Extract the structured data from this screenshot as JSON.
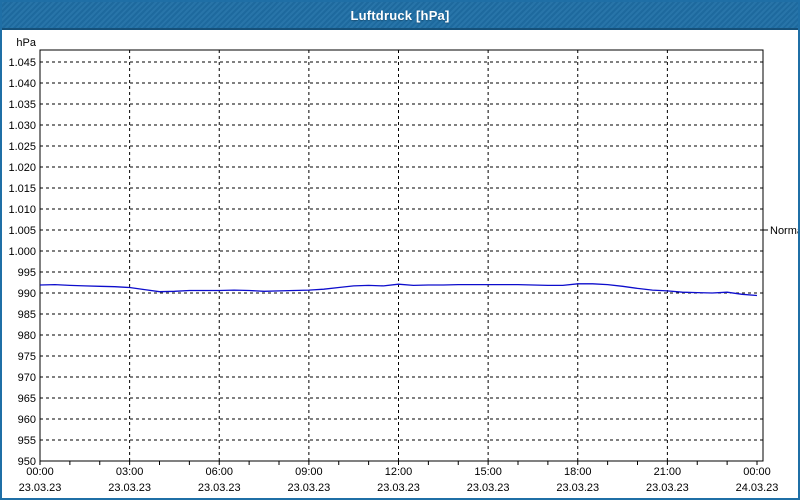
{
  "window": {
    "title": "Luftdruck [hPa]"
  },
  "colors": {
    "titlebar": "#1f6fa6",
    "titlebar_edge": "#155079",
    "window_border": "#1f6fa6",
    "plot_background": "#ffffff",
    "frame": "#000000",
    "grid": "#000000",
    "text": "#000000",
    "series_line": "#0d0dcc"
  },
  "chart_data": {
    "type": "line",
    "title": "Luftdruck [hPa]",
    "y_axis_unit": "hPa",
    "ylim": [
      950,
      1047.5
    ],
    "grid": "dashed",
    "legend_position": "none",
    "y_ticks": [
      {
        "value": 1045,
        "label": "1.045"
      },
      {
        "value": 1040,
        "label": "1.040"
      },
      {
        "value": 1035,
        "label": "1.035"
      },
      {
        "value": 1030,
        "label": "1.030"
      },
      {
        "value": 1025,
        "label": "1.025"
      },
      {
        "value": 1020,
        "label": "1.020"
      },
      {
        "value": 1015,
        "label": "1.015"
      },
      {
        "value": 1010,
        "label": "1.010"
      },
      {
        "value": 1005,
        "label": "1.005"
      },
      {
        "value": 1000,
        "label": "1.000"
      },
      {
        "value": 995,
        "label": "995"
      },
      {
        "value": 990,
        "label": "990"
      },
      {
        "value": 985,
        "label": "985"
      },
      {
        "value": 980,
        "label": "980"
      },
      {
        "value": 975,
        "label": "975"
      },
      {
        "value": 970,
        "label": "970"
      },
      {
        "value": 965,
        "label": "965"
      },
      {
        "value": 960,
        "label": "960"
      },
      {
        "value": 955,
        "label": "955"
      },
      {
        "value": 950,
        "label": "950"
      }
    ],
    "x_ticks_major": [
      {
        "hour": 0,
        "time": "00:00",
        "date": "23.03.23"
      },
      {
        "hour": 3,
        "time": "03:00",
        "date": "23.03.23"
      },
      {
        "hour": 6,
        "time": "06:00",
        "date": "23.03.23"
      },
      {
        "hour": 9,
        "time": "09:00",
        "date": "23.03.23"
      },
      {
        "hour": 12,
        "time": "12:00",
        "date": "23.03.23"
      },
      {
        "hour": 15,
        "time": "15:00",
        "date": "23.03.23"
      },
      {
        "hour": 18,
        "time": "18:00",
        "date": "23.03.23"
      },
      {
        "hour": 21,
        "time": "21:00",
        "date": "23.03.23"
      },
      {
        "hour": 24,
        "time": "00:00",
        "date": "24.03.23"
      }
    ],
    "x_minor_tick_every_hours": 1,
    "normal_marker": {
      "label": "Normal",
      "value": 1005
    },
    "series": [
      {
        "name": "Luftdruck",
        "color": "#0d0dcc",
        "x_hours": [
          0,
          0.5,
          1,
          1.5,
          2,
          2.5,
          3,
          3.5,
          4,
          4.5,
          5,
          5.5,
          6,
          6.5,
          7,
          7.5,
          8,
          8.5,
          9,
          9.5,
          10,
          10.5,
          11,
          11.5,
          12,
          12.5,
          13,
          13.5,
          14,
          14.5,
          15,
          15.5,
          16,
          16.5,
          17,
          17.5,
          18,
          18.5,
          19,
          19.5,
          20,
          20.5,
          21,
          21.5,
          22,
          22.5,
          23,
          23.5,
          24
        ],
        "values": [
          991.9,
          992.0,
          991.8,
          991.7,
          991.6,
          991.5,
          991.3,
          990.8,
          990.3,
          990.4,
          990.6,
          990.6,
          990.6,
          990.7,
          990.6,
          990.4,
          990.5,
          990.6,
          990.7,
          990.9,
          991.3,
          991.7,
          991.8,
          991.7,
          992.1,
          991.8,
          991.9,
          991.9,
          992.0,
          992.0,
          992.0,
          992.0,
          992.0,
          991.9,
          991.8,
          991.8,
          992.2,
          992.2,
          992.0,
          991.6,
          991.1,
          990.7,
          990.5,
          990.2,
          990.1,
          990.0,
          990.2,
          989.7,
          989.4
        ]
      }
    ]
  }
}
